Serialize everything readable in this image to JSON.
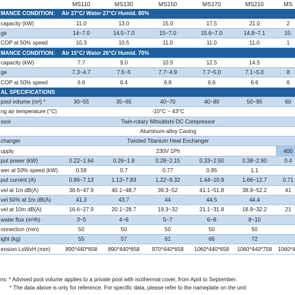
{
  "models": [
    "MS110",
    "MS130",
    "MS150",
    "MS170",
    "MS210",
    "MS"
  ],
  "rows": [
    {
      "type": "sec",
      "cells": [
        "MANCE CONDITION:",
        "Air 27°C/ Water 27°C/ Humid. 80%",
        "",
        "",
        "",
        "",
        ""
      ]
    },
    {
      "type": "plain",
      "cells": [
        "capacity (kW)",
        "11.0",
        "13.0",
        "15.0",
        "17.5",
        "21.0",
        "2"
      ]
    },
    {
      "type": "alt",
      "cells": [
        "ge",
        "14~7.0",
        "14.5~7.0",
        "15~7.0",
        "15.6~7.0",
        "14.8~7.1",
        "15."
      ]
    },
    {
      "type": "plain",
      "cells": [
        "COP at 50% speed",
        "10.3",
        "10.5",
        "11.0",
        "11.0",
        "11.0",
        "1"
      ]
    },
    {
      "type": "sec",
      "cells": [
        "MANCE CONDITION:",
        "Air 15°C/ Water 26°C/ Humid. 70%",
        "",
        "",
        "",
        "",
        ""
      ]
    },
    {
      "type": "plain",
      "cells": [
        "capacity (kW)",
        "7.7",
        "9.0",
        "10.5",
        "12.5",
        "14.5",
        ""
      ]
    },
    {
      "type": "alt",
      "cells": [
        "ge",
        "7.3~4.7",
        "7.5~5",
        "7.7~4.9",
        "7.7~5.0",
        "7.1~5.0",
        "8"
      ]
    },
    {
      "type": "plain",
      "cells": [
        "COP at 50% speed",
        "6.6",
        "6.4",
        "6.8",
        "6.6",
        "6.6",
        "6"
      ]
    },
    {
      "type": "sec",
      "cells": [
        "AL SPECIFICATIONS",
        "",
        "",
        "",
        "",
        "",
        ""
      ]
    },
    {
      "type": "alt",
      "cells": [
        "pool volume (m³) *",
        "30~55",
        "35~65",
        "40~70",
        "40~80",
        "50~95",
        "60"
      ]
    },
    {
      "type": "plain",
      "cells": [
        "ng air temperature (°C)",
        "-10°C ~ 43°C",
        "",
        "",
        "",
        "",
        ""
      ]
    },
    {
      "type": "alt",
      "cells": [
        "ssor",
        "Twin-rotary Mitsubishi DC Compressor",
        "",
        "",
        "",
        "",
        ""
      ]
    },
    {
      "type": "plain",
      "cells": [
        "",
        "Aluminum-alloy Casing",
        "",
        "",
        "",
        "",
        ""
      ]
    },
    {
      "type": "alt",
      "cells": [
        "changer",
        "Twisted Titanium Heat Exchanger",
        "",
        "",
        "",
        "",
        ""
      ]
    },
    {
      "type": "plain",
      "cells": [
        "upply",
        "230V 1Ph",
        "",
        "",
        "",
        "",
        "400"
      ]
    },
    {
      "type": "alt",
      "cells": [
        "put power (kW)",
        "0.22~1.64",
        "0.26~1.8",
        "0.28~2.15",
        "0.33~2.50",
        "0.38~2.90",
        "0.4"
      ]
    },
    {
      "type": "plain",
      "cells": [
        "wer at 50% speed (kW)",
        "0.58",
        "0.7",
        "0.77",
        "0.95",
        "1.1",
        ""
      ]
    },
    {
      "type": "alt",
      "cells": [
        "put current (A)",
        "0.96~7.13",
        "1.13~7.83",
        "1.22~9.32",
        "1.44~10.9",
        "1.66~12.7",
        "0.71"
      ]
    },
    {
      "type": "plain",
      "cells": [
        "vel at 1m dB(A)",
        "36.6~47.9",
        "40.1~48.7",
        "39.3~52",
        "41.1~51.8",
        "38.9~52.2",
        "41"
      ]
    },
    {
      "type": "alt",
      "cells": [
        "vel 50% at 1m dB(A)",
        "41.3",
        "43.7",
        "44",
        "44.5",
        "44.4",
        ""
      ]
    },
    {
      "type": "plain",
      "cells": [
        "vel at 10m dB(A)",
        "16.6~27.9",
        "20.1~28.7",
        "19.3~32",
        "21.1~31.8",
        "18.9~32.2",
        "21"
      ]
    },
    {
      "type": "alt",
      "cells": [
        "water flux (m³/h)",
        "3~5",
        "4~6",
        "5~7",
        "6~8",
        "8~10",
        ""
      ]
    },
    {
      "type": "plain",
      "cells": [
        "onnection (mm)",
        "50",
        "50",
        "50",
        "50",
        "50",
        ""
      ]
    },
    {
      "type": "alt",
      "cells": [
        "ight (kg)",
        "55",
        "57",
        "61",
        "66",
        "72",
        ""
      ]
    },
    {
      "type": "plain",
      "cells": [
        "ension LxWxH (mm)",
        "890*440*658",
        "890*440*658",
        "970*440*658",
        "1060*440*658",
        "1060*440*758",
        "1060*44"
      ]
    }
  ],
  "notes": {
    "prefix": "ns:",
    "line1": "* Advised pool volume applies to a private pool with isothermal cover, from April to September.",
    "line2": "* The data above is only for reference. For specific data, please refer to the nameplate on the unit."
  }
}
